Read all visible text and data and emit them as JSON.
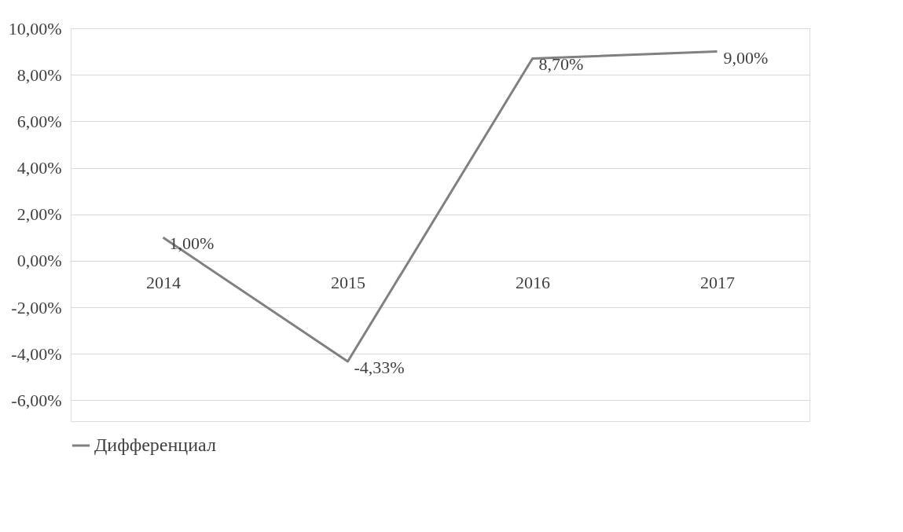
{
  "chart_data": {
    "type": "line",
    "categories": [
      "2014",
      "2015",
      "2016",
      "2017"
    ],
    "series": [
      {
        "name": "Дифференциал",
        "color": "#808080",
        "values": [
          1.0,
          -4.33,
          8.7,
          9.0
        ],
        "value_labels": [
          "1,00%",
          "-4,33%",
          "8,70%",
          "9,00%"
        ]
      }
    ],
    "ylim": [
      -6.9,
      10
    ],
    "yticks": [
      {
        "value": -6,
        "label": "-6,00%"
      },
      {
        "value": -4,
        "label": "-4,00%"
      },
      {
        "value": -2,
        "label": "-2,00%"
      },
      {
        "value": 0,
        "label": "0,00%"
      },
      {
        "value": 2,
        "label": "2,00%"
      },
      {
        "value": 4,
        "label": "4,00%"
      },
      {
        "value": 6,
        "label": "6,00%"
      },
      {
        "value": 8,
        "label": "8,00%"
      },
      {
        "value": 10,
        "label": "10,00%"
      }
    ],
    "grid": "y",
    "legend": "bottom",
    "marker": "none",
    "line_style": "solid"
  }
}
